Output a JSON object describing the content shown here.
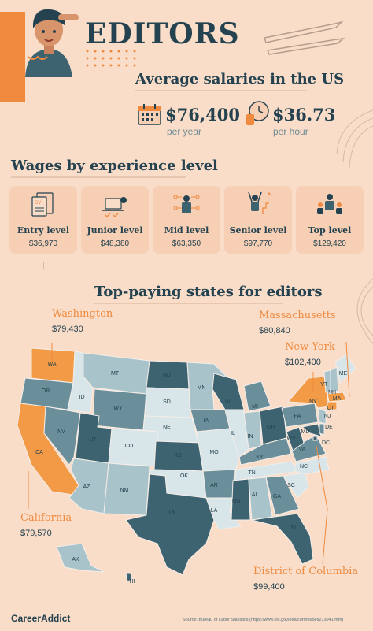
{
  "title": "EDITORS",
  "avg_heading": "Average salaries in the US",
  "salary_year": {
    "value": "$76,400",
    "unit": "per year"
  },
  "salary_hour": {
    "value": "$36.73",
    "unit": "per hour"
  },
  "wages_heading": "Wages by experience level",
  "levels": [
    {
      "label": "Entry level",
      "value": "$36,970"
    },
    {
      "label": "Junior level",
      "value": "$48,380"
    },
    {
      "label": "Mid level",
      "value": "$63,350"
    },
    {
      "label": "Senior level",
      "value": "$97,770"
    },
    {
      "label": "Top level",
      "value": "$129,420"
    }
  ],
  "states_heading": "Top-paying states for editors",
  "callouts": {
    "washington": {
      "name": "Washington",
      "value": "$79,430"
    },
    "massachusetts": {
      "name": "Massachusetts",
      "value": "$80,840"
    },
    "new_york": {
      "name": "New York",
      "value": "$102,400"
    },
    "california": {
      "name": "California",
      "value": "$79,570"
    },
    "dc": {
      "name": "District of Columbia",
      "value": "$99,400"
    }
  },
  "state_labels": [
    "WA",
    "OR",
    "ID",
    "MT",
    "ND",
    "SD",
    "WY",
    "NV",
    "CA",
    "UT",
    "CO",
    "NE",
    "KS",
    "OK",
    "TX",
    "NM",
    "AZ",
    "MN",
    "WI",
    "IA",
    "MO",
    "AR",
    "LA",
    "IL",
    "MI",
    "IN",
    "OH",
    "KY",
    "TN",
    "MS",
    "AL",
    "GA",
    "FL",
    "SC",
    "NC",
    "VA",
    "WV",
    "PA",
    "NY",
    "VT",
    "NH",
    "ME",
    "MA",
    "CT",
    "NJ",
    "DE",
    "MD",
    "DC",
    "AK",
    "HI"
  ],
  "brand": "CareerAddict",
  "source": "Source: Bureau of Labor Statistics (https://www.bls.gov/oes/current/oes273041.htm)",
  "colors": {
    "dark": "#3d6270",
    "mid": "#6b8f9a",
    "light": "#a9c3ca",
    "pale": "#d8e6e9",
    "highlight": "#f29a45",
    "text": "#24424f"
  }
}
